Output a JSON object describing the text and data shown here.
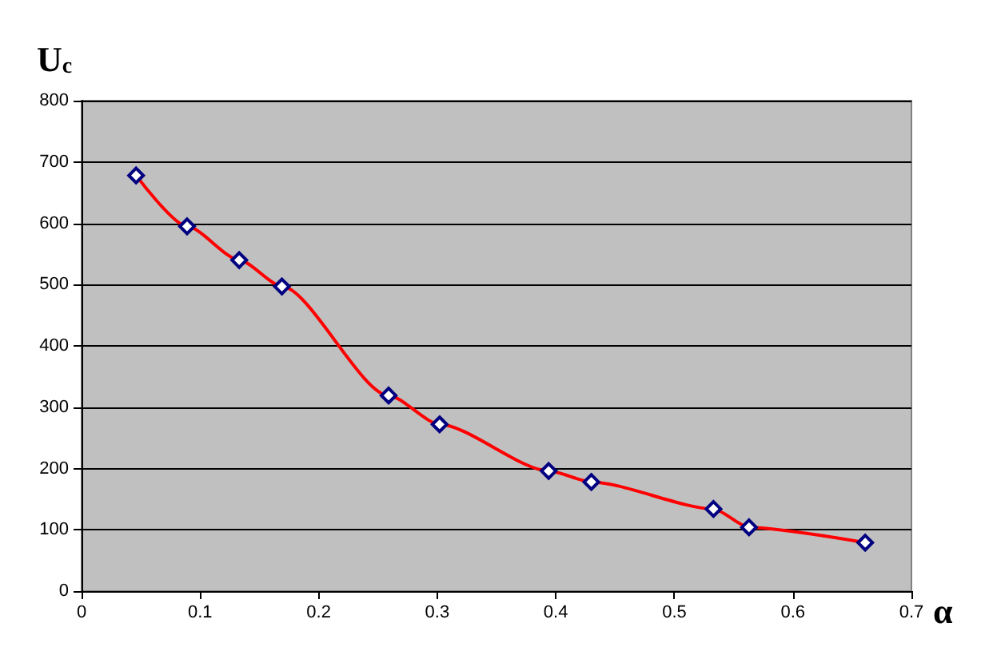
{
  "chart_data": {
    "type": "line",
    "xlabel": "α",
    "ylabel": "U$_{c}$",
    "x": [
      0.046,
      0.089,
      0.133,
      0.169,
      0.259,
      0.302,
      0.394,
      0.43,
      0.533,
      0.563,
      0.661
    ],
    "series": [
      {
        "color": "#ff0000",
        "values": [
          678,
          595,
          540,
          497,
          319,
          272,
          196,
          178,
          134,
          104,
          79
        ]
      }
    ],
    "xlim": [
      0,
      0.7
    ],
    "xticks": [
      0,
      0.1,
      0.2,
      0.3,
      0.4,
      0.5,
      0.6,
      0.7
    ],
    "ylim": [
      0,
      800
    ],
    "yticks": [
      0,
      100,
      200,
      300,
      400,
      500,
      600,
      700,
      800
    ],
    "grid": "y",
    "marker": "diamond",
    "line_style": "solid"
  }
}
